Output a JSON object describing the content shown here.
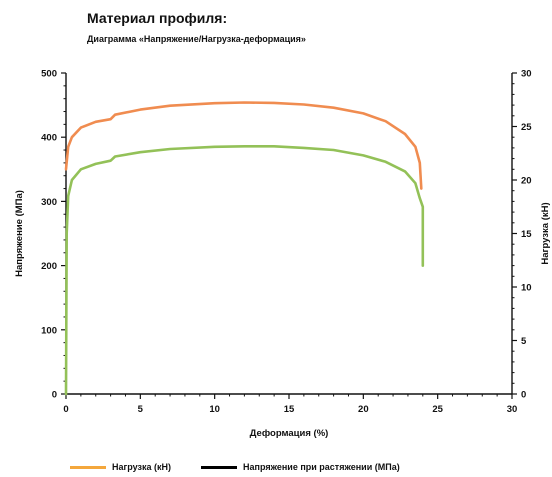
{
  "header": {
    "title": "Материал профиля:",
    "subtitle": "Диаграмма «Напряжение/Нагрузка-деформация»"
  },
  "legend": {
    "items": [
      {
        "label": "Нагрузка (кН)",
        "color": "#f4a73c"
      },
      {
        "label": "Напряжение при растяжении (МПа)",
        "color": "#000000"
      }
    ]
  },
  "colors": {
    "stress_curve": "#f08c50",
    "load_curve": "#93c158",
    "axis": "#111111"
  },
  "chart_data": {
    "type": "line",
    "xlabel": "Деформация (%)",
    "ylabel": "Напряжение (МПа)",
    "y2label": "Нагрузка (кН)",
    "xlim": [
      0,
      30
    ],
    "ylim": [
      0,
      500
    ],
    "y2lim": [
      0,
      30
    ],
    "x_ticks": [
      0,
      5,
      10,
      15,
      20,
      25,
      30
    ],
    "y_ticks": [
      0,
      100,
      200,
      300,
      400,
      500
    ],
    "y2_ticks": [
      0,
      5,
      10,
      15,
      20,
      25,
      30
    ],
    "grid": false,
    "legend_position": "bottom",
    "series": [
      {
        "axis": "left",
        "points": [
          [
            0,
            350
          ],
          [
            0.15,
            385
          ],
          [
            0.4,
            400
          ],
          [
            1,
            415
          ],
          [
            2,
            424
          ],
          [
            3,
            428
          ],
          [
            3.3,
            435
          ],
          [
            5,
            443
          ],
          [
            7,
            449
          ],
          [
            10,
            453
          ],
          [
            12,
            454
          ],
          [
            14,
            453.5
          ],
          [
            16,
            451
          ],
          [
            18,
            446
          ],
          [
            20,
            437
          ],
          [
            21.5,
            425
          ],
          [
            22.8,
            405
          ],
          [
            23.5,
            385
          ],
          [
            23.8,
            360
          ],
          [
            23.9,
            320
          ]
        ]
      },
      {
        "axis": "right",
        "points": [
          [
            0,
            0
          ],
          [
            0.05,
            15
          ],
          [
            0.15,
            18.5
          ],
          [
            0.4,
            20
          ],
          [
            1,
            21
          ],
          [
            2,
            21.5
          ],
          [
            3,
            21.8
          ],
          [
            3.3,
            22.2
          ],
          [
            5,
            22.6
          ],
          [
            7,
            22.9
          ],
          [
            10,
            23.1
          ],
          [
            12,
            23.15
          ],
          [
            14,
            23.15
          ],
          [
            16,
            23.0
          ],
          [
            18,
            22.8
          ],
          [
            20,
            22.3
          ],
          [
            21.5,
            21.7
          ],
          [
            22.8,
            20.8
          ],
          [
            23.5,
            19.7
          ],
          [
            23.8,
            18.3
          ],
          [
            24,
            17.5
          ],
          [
            24,
            12
          ]
        ]
      }
    ]
  }
}
